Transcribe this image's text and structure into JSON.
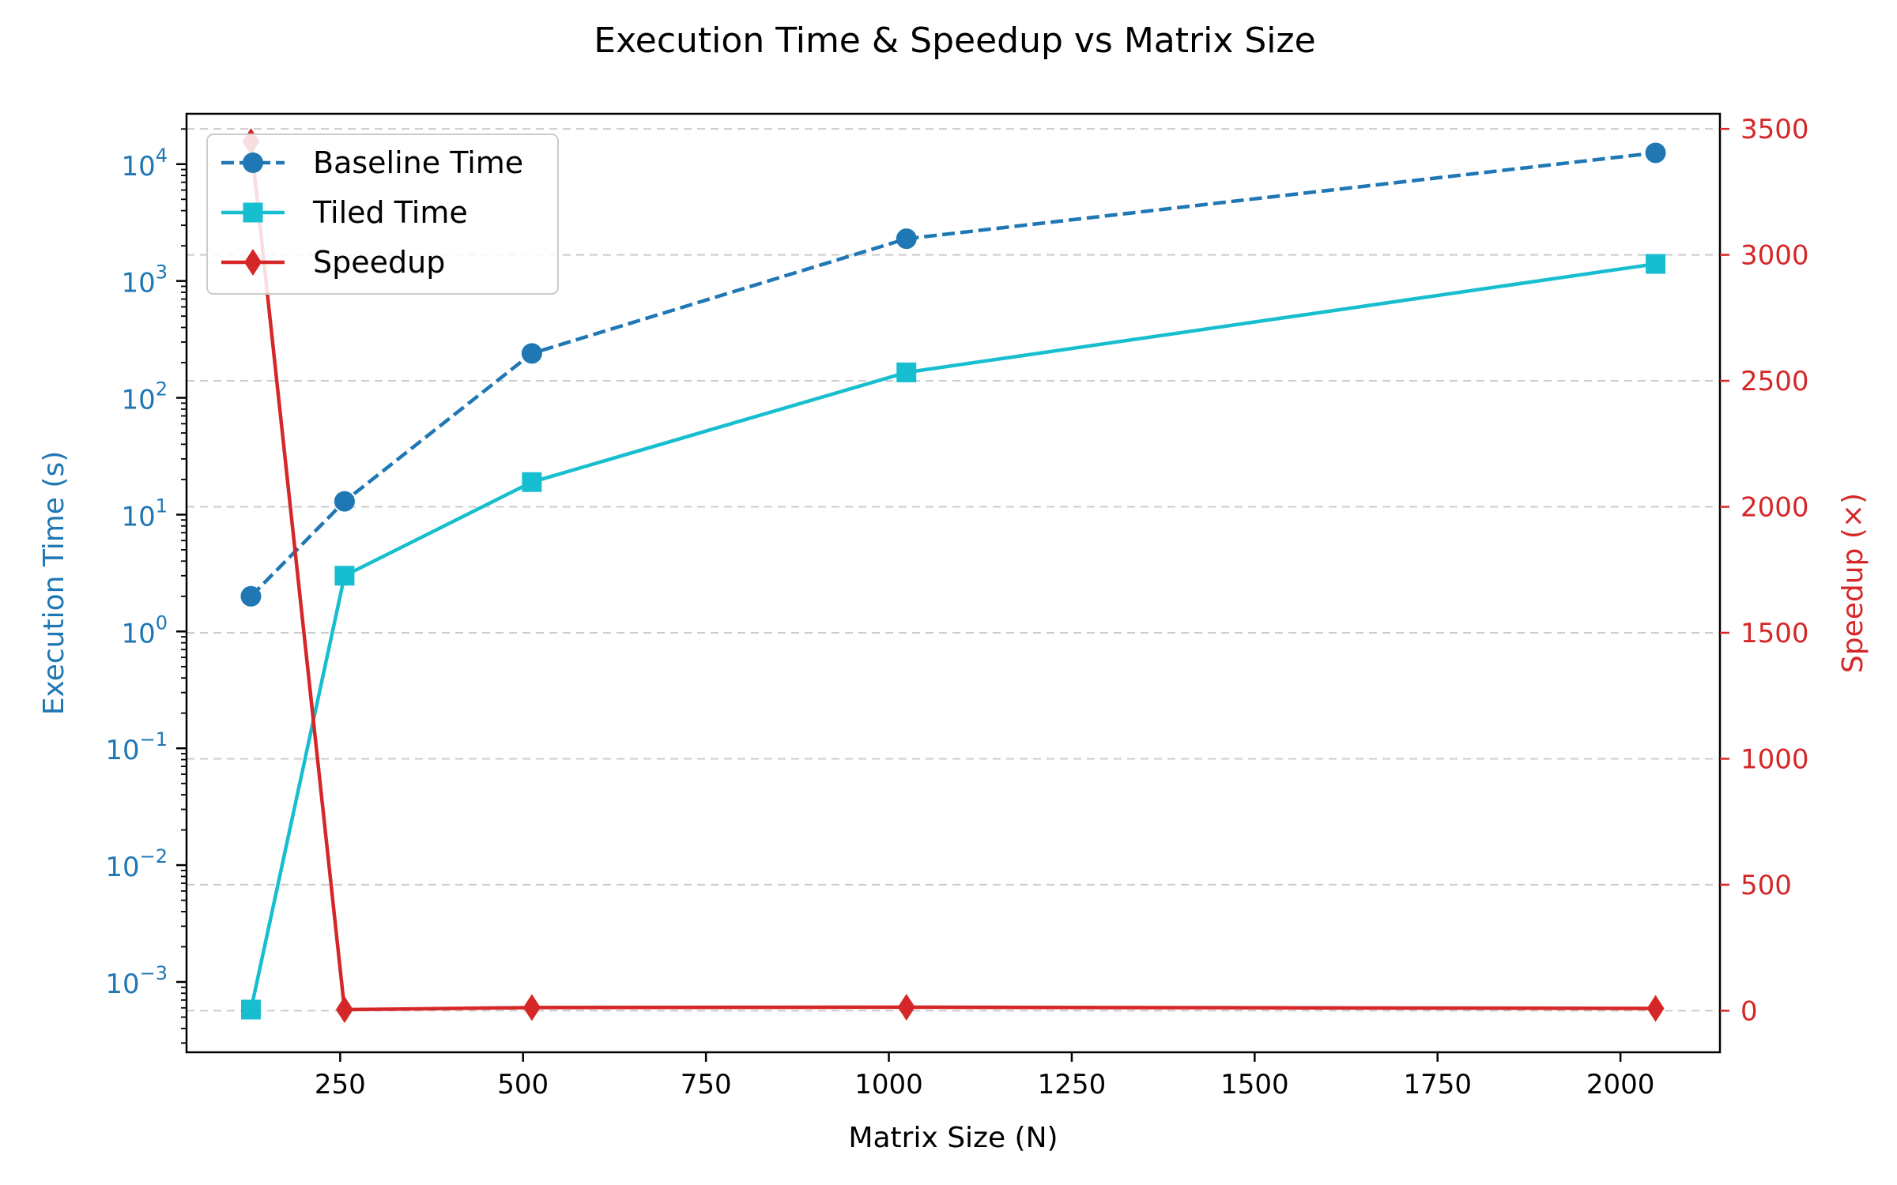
{
  "chart_data": {
    "type": "line",
    "title": "Execution Time & Speedup vs Matrix Size",
    "xlabel": "Matrix Size (N)",
    "ylabel": "Execution Time (s)",
    "y2label": "Speedup (×)",
    "x": [
      128,
      256,
      512,
      1024,
      2048
    ],
    "xlim": [
      40,
      2136
    ],
    "xticks": [
      250,
      500,
      750,
      1000,
      1250,
      1500,
      1750,
      2000
    ],
    "yscale": "log",
    "ylim": [
      0.00025,
      27000
    ],
    "yticks": [
      {
        "value": 0.001,
        "base": "10",
        "exp": "−3"
      },
      {
        "value": 0.01,
        "base": "10",
        "exp": "−2"
      },
      {
        "value": 0.1,
        "base": "10",
        "exp": "−1"
      },
      {
        "value": 1,
        "base": "10",
        "exp": "0"
      },
      {
        "value": 10,
        "base": "10",
        "exp": "1"
      },
      {
        "value": 100,
        "base": "10",
        "exp": "2"
      },
      {
        "value": 1000,
        "base": "10",
        "exp": "3"
      },
      {
        "value": 10000,
        "base": "10",
        "exp": "4"
      }
    ],
    "y2lim": [
      -165,
      3560
    ],
    "y2ticks": [
      0,
      500,
      1000,
      1500,
      2000,
      2500,
      3000,
      3500
    ],
    "grid": "y2-dashed",
    "legend_position": "top-left",
    "colors": {
      "baseline": "#1f77b4",
      "tiled": "#17becf",
      "speedup": "#d62728",
      "left_axis": "#1f77b4",
      "right_axis": "#d62728",
      "grid": "#cccccc"
    },
    "series": [
      {
        "name": "Baseline Time",
        "axis": "left",
        "marker": "circle",
        "dash": "dashed",
        "color": "#1f77b4",
        "values": [
          2.0,
          13.0,
          240.0,
          2300.0,
          12500.0
        ]
      },
      {
        "name": "Tiled Time",
        "axis": "left",
        "marker": "square",
        "dash": "solid",
        "color": "#17becf",
        "values": [
          0.00058,
          3.0,
          19.0,
          165.0,
          1400.0
        ]
      },
      {
        "name": "Speedup",
        "axis": "right",
        "marker": "diamond",
        "dash": "solid",
        "color": "#d62728",
        "values": [
          3450,
          4.3,
          12.6,
          13.9,
          8.9
        ]
      }
    ]
  }
}
